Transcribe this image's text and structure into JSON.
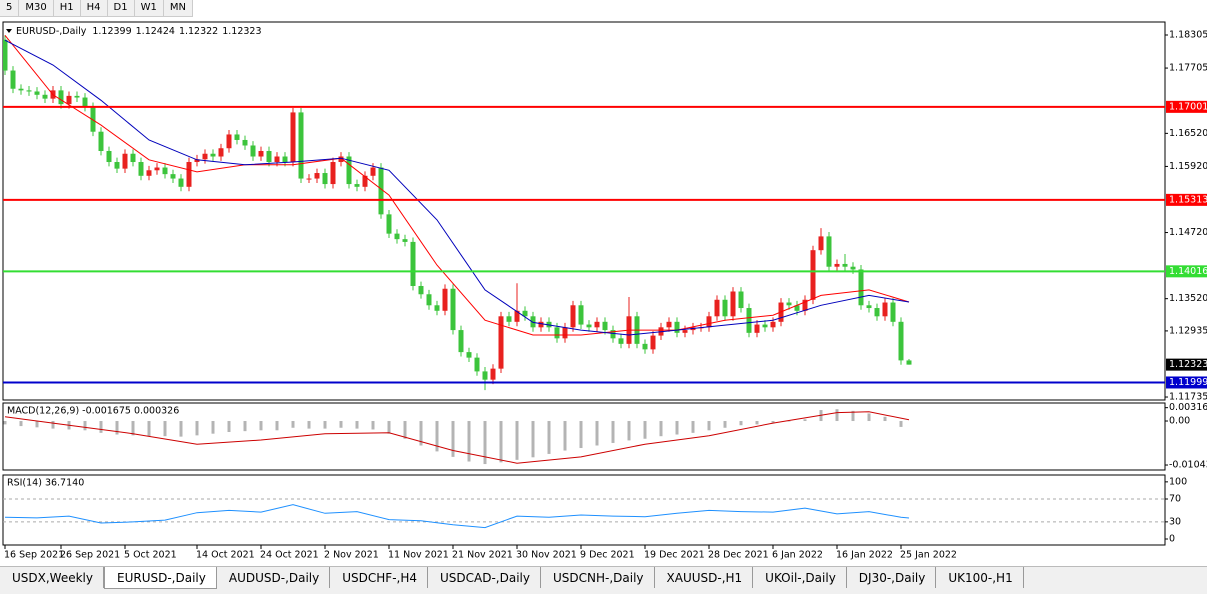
{
  "toolbar": [
    "5",
    "M30",
    "H1",
    "H4",
    "D1",
    "W1",
    "MN"
  ],
  "tabs": [
    "USDX,Weekly",
    "EURUSD-,Daily",
    "AUDUSD-,Daily",
    "USDCHF-,H4",
    "USDCAD-,Daily",
    "USDCNH-,Daily",
    "XAUUSD-,H1",
    "UKOil-,Daily",
    "DJ30-,Daily",
    "UK100-,H1"
  ],
  "active_tab": 1,
  "chart_data": [
    {
      "type": "candlestick",
      "symbol": "EURUSD-,Daily",
      "up_color": "#e8211f",
      "down_color": "#3cc43c",
      "xlim": [
        -0.25,
        145
      ],
      "xticks": [
        {
          "value": 0,
          "label": "16 Sep 2021"
        },
        {
          "value": 7,
          "label": "26 Sep 2021"
        },
        {
          "value": 15,
          "label": "5 Oct 2021"
        },
        {
          "value": 24,
          "label": "14 Oct 2021"
        },
        {
          "value": 32,
          "label": "24 Oct 2021"
        },
        {
          "value": 40,
          "label": "2 Nov 2021"
        },
        {
          "value": 48,
          "label": "11 Nov 2021"
        },
        {
          "value": 56,
          "label": "21 Nov 2021"
        },
        {
          "value": 64,
          "label": "30 Nov 2021"
        },
        {
          "value": 72,
          "label": "9 Dec 2021"
        },
        {
          "value": 80,
          "label": "19 Dec 2021"
        },
        {
          "value": 88,
          "label": "28 Dec 2021"
        },
        {
          "value": 96,
          "label": "6 Jan 2022"
        },
        {
          "value": 104,
          "label": "16 Jan 2022"
        },
        {
          "value": 112,
          "label": "25 Jan 2022"
        }
      ],
      "ylim": [
        1.11681,
        1.18541
      ],
      "yticks": [
        1.18305,
        1.17705,
        {
          "value": 1.1652,
          "label": "1.16520"
        },
        {
          "value": 1.1592,
          "label": "1.15920"
        },
        {
          "value": 1.1472,
          "label": "1.14720"
        },
        {
          "value": 1.1352,
          "label": "1.13520"
        },
        1.12935,
        1.11735
      ],
      "hlines": [
        {
          "value": 1.17001,
          "color": "#ff0000"
        },
        {
          "value": 1.15313,
          "color": "#ff0000"
        },
        {
          "value": 1.14016,
          "color": "#33dd33"
        },
        {
          "value": 1.11999,
          "color": "#0000cc"
        }
      ],
      "current_price_color": "#000000",
      "open": [
        1.1822,
        1.1766,
        1.1733,
        1.173,
        1.1728,
        1.1722,
        1.1715,
        1.173,
        1.1705,
        1.172,
        1.1717,
        1.17,
        1.1655,
        1.162,
        1.16,
        1.1588,
        1.1615,
        1.16,
        1.1575,
        1.1585,
        1.159,
        1.1578,
        1.157,
        1.1555,
        1.16,
        1.1605,
        1.1615,
        1.161,
        1.1625,
        1.165,
        1.164,
        1.163,
        1.161,
        1.162,
        1.16,
        1.161,
        1.16,
        1.169,
        1.157,
        1.157,
        1.158,
        1.156,
        1.16,
        1.161,
        1.156,
        1.1555,
        1.1575,
        1.159,
        1.1505,
        1.147,
        1.146,
        1.1455,
        1.1375,
        1.136,
        1.134,
        1.133,
        1.137,
        1.1295,
        1.1255,
        1.1245,
        1.122,
        1.1205,
        1.1225,
        1.132,
        1.131,
        1.133,
        1.132,
        1.13,
        1.131,
        1.13,
        1.128,
        1.13,
        1.134,
        1.1305,
        1.13,
        1.131,
        1.1295,
        1.128,
        1.127,
        1.132,
        1.127,
        1.126,
        1.1285,
        1.13,
        1.131,
        1.129,
        1.1295,
        1.13,
        1.13,
        1.132,
        1.135,
        1.132,
        1.1365,
        1.1335,
        1.129,
        1.1305,
        1.13,
        1.131,
        1.1345,
        1.134,
        1.133,
        1.135,
        1.144,
        1.1465,
        1.141,
        1.1415,
        1.141,
        1.1405,
        1.134,
        1.1335,
        1.132,
        1.1345,
        1.131,
        1.12399
      ],
      "high": [
        1.183,
        1.1774,
        1.1741,
        1.1738,
        1.1736,
        1.173,
        1.1738,
        1.1738,
        1.1728,
        1.1728,
        1.1725,
        1.1708,
        1.1663,
        1.1628,
        1.1608,
        1.1623,
        1.1623,
        1.1608,
        1.1593,
        1.1598,
        1.1598,
        1.1586,
        1.1578,
        1.1608,
        1.1613,
        1.1623,
        1.1623,
        1.1633,
        1.1658,
        1.1658,
        1.1648,
        1.1638,
        1.1628,
        1.1628,
        1.1618,
        1.1618,
        1.1698,
        1.1698,
        1.1578,
        1.1588,
        1.1588,
        1.1608,
        1.1618,
        1.1618,
        1.1568,
        1.1583,
        1.1598,
        1.1598,
        1.1513,
        1.1478,
        1.1468,
        1.1463,
        1.1383,
        1.1368,
        1.1348,
        1.1378,
        1.1378,
        1.1303,
        1.1263,
        1.1253,
        1.1228,
        1.1233,
        1.1328,
        1.1328,
        1.138,
        1.1338,
        1.1328,
        1.1318,
        1.1318,
        1.1308,
        1.1308,
        1.1348,
        1.1348,
        1.1313,
        1.1318,
        1.1318,
        1.1303,
        1.1288,
        1.1355,
        1.1328,
        1.1278,
        1.1293,
        1.1308,
        1.1318,
        1.1318,
        1.1303,
        1.1308,
        1.1308,
        1.1328,
        1.1358,
        1.1358,
        1.1373,
        1.1373,
        1.1343,
        1.1313,
        1.1313,
        1.1318,
        1.1353,
        1.1353,
        1.1348,
        1.1358,
        1.1448,
        1.148,
        1.1473,
        1.1423,
        1.1433,
        1.1418,
        1.1413,
        1.1348,
        1.1343,
        1.1353,
        1.1353,
        1.1318,
        1.12424
      ],
      "low": [
        1.1758,
        1.1725,
        1.1722,
        1.172,
        1.1714,
        1.1707,
        1.1707,
        1.1697,
        1.1697,
        1.1709,
        1.1692,
        1.1647,
        1.1612,
        1.1592,
        1.158,
        1.158,
        1.1592,
        1.1567,
        1.1567,
        1.1577,
        1.157,
        1.1562,
        1.1547,
        1.1547,
        1.1592,
        1.1597,
        1.1602,
        1.1602,
        1.1617,
        1.1632,
        1.1622,
        1.1602,
        1.1602,
        1.1592,
        1.1592,
        1.1592,
        1.1592,
        1.1562,
        1.1562,
        1.1562,
        1.1552,
        1.1552,
        1.1592,
        1.1552,
        1.1547,
        1.1547,
        1.1567,
        1.1497,
        1.1462,
        1.1452,
        1.1447,
        1.1367,
        1.1352,
        1.1332,
        1.1322,
        1.1322,
        1.1287,
        1.1247,
        1.1237,
        1.1212,
        1.1186,
        1.1197,
        1.1217,
        1.1302,
        1.1302,
        1.1312,
        1.1292,
        1.1292,
        1.1292,
        1.1272,
        1.1272,
        1.1292,
        1.1297,
        1.1292,
        1.1292,
        1.1287,
        1.1272,
        1.1262,
        1.1262,
        1.1262,
        1.1252,
        1.1252,
        1.1277,
        1.1292,
        1.1282,
        1.1282,
        1.1287,
        1.1292,
        1.1292,
        1.1312,
        1.1312,
        1.1312,
        1.1327,
        1.1282,
        1.1282,
        1.1292,
        1.1292,
        1.1302,
        1.1332,
        1.1322,
        1.1322,
        1.1342,
        1.1432,
        1.1402,
        1.1402,
        1.1402,
        1.1397,
        1.1332,
        1.1327,
        1.1312,
        1.1312,
        1.1302,
        1.1232,
        1.12322
      ],
      "close": [
        1.1766,
        1.1733,
        1.173,
        1.1728,
        1.1722,
        1.1715,
        1.173,
        1.1705,
        1.172,
        1.1717,
        1.17,
        1.1655,
        1.162,
        1.16,
        1.1588,
        1.1615,
        1.16,
        1.1575,
        1.1585,
        1.159,
        1.1578,
        1.157,
        1.1555,
        1.16,
        1.1605,
        1.1615,
        1.161,
        1.1625,
        1.165,
        1.164,
        1.163,
        1.161,
        1.162,
        1.16,
        1.161,
        1.16,
        1.169,
        1.157,
        1.157,
        1.158,
        1.156,
        1.16,
        1.161,
        1.156,
        1.1555,
        1.1575,
        1.159,
        1.1505,
        1.147,
        1.146,
        1.1455,
        1.1375,
        1.136,
        1.134,
        1.133,
        1.137,
        1.1295,
        1.1255,
        1.1245,
        1.122,
        1.1205,
        1.1225,
        1.132,
        1.131,
        1.133,
        1.132,
        1.13,
        1.131,
        1.13,
        1.128,
        1.13,
        1.134,
        1.1305,
        1.13,
        1.131,
        1.1295,
        1.128,
        1.127,
        1.132,
        1.127,
        1.126,
        1.1285,
        1.13,
        1.131,
        1.129,
        1.1295,
        1.13,
        1.13,
        1.132,
        1.135,
        1.132,
        1.1365,
        1.1335,
        1.129,
        1.1305,
        1.13,
        1.131,
        1.1345,
        1.134,
        1.133,
        1.135,
        1.144,
        1.1465,
        1.141,
        1.1415,
        1.141,
        1.1405,
        1.134,
        1.1335,
        1.132,
        1.1345,
        1.131,
        1.124,
        1.12323
      ],
      "series": [
        {
          "color": "#ff0000",
          "x": [
            0,
            6,
            12,
            18,
            24,
            30,
            36,
            42,
            48,
            54,
            60,
            66,
            72,
            78,
            84,
            90,
            96,
            102,
            108,
            113
          ],
          "values": [
            1.183,
            1.1722,
            1.1667,
            1.1604,
            1.1582,
            1.1595,
            1.1595,
            1.1607,
            1.154,
            1.1413,
            1.1313,
            1.1286,
            1.1286,
            1.1295,
            1.1295,
            1.1313,
            1.1322,
            1.1358,
            1.1368,
            1.1346
          ]
        },
        {
          "color": "#0000bb",
          "x": [
            0,
            6,
            12,
            18,
            24,
            30,
            36,
            42,
            48,
            54,
            60,
            66,
            72,
            78,
            84,
            90,
            96,
            102,
            108,
            113
          ],
          "values": [
            1.1821,
            1.1776,
            1.1712,
            1.164,
            1.1604,
            1.1595,
            1.16,
            1.1607,
            1.1585,
            1.1495,
            1.1368,
            1.1309,
            1.1295,
            1.1286,
            1.1295,
            1.1304,
            1.1313,
            1.134,
            1.1358,
            1.1346
          ]
        }
      ]
    },
    {
      "type": "bar",
      "title": "MACD(12,26,9) -0.001675 0.000326",
      "ylim": [
        -0.01161,
        0.00427
      ],
      "yticks": [
        0.003165,
        {
          "value": 0,
          "label": "0.00"
        },
        -0.010431
      ],
      "series": [
        {
          "type": "bar",
          "color": "#b4b4b4",
          "x": [
            0,
            2,
            4,
            6,
            8,
            10,
            12,
            14,
            16,
            18,
            20,
            22,
            24,
            26,
            28,
            30,
            32,
            34,
            36,
            38,
            40,
            42,
            44,
            46,
            48,
            50,
            52,
            54,
            56,
            58,
            60,
            62,
            64,
            66,
            68,
            70,
            72,
            74,
            76,
            78,
            80,
            82,
            84,
            86,
            88,
            90,
            92,
            94,
            96,
            98,
            100,
            102,
            104,
            106,
            108,
            110,
            112
          ],
          "values": [
            -0.0008,
            -0.0012,
            -0.0015,
            -0.0018,
            -0.002,
            -0.0022,
            -0.0028,
            -0.0032,
            -0.0034,
            -0.0036,
            -0.0036,
            -0.0037,
            -0.0034,
            -0.003,
            -0.0026,
            -0.0024,
            -0.0022,
            -0.0022,
            -0.0016,
            -0.0018,
            -0.0018,
            -0.0016,
            -0.0018,
            -0.002,
            -0.003,
            -0.0042,
            -0.0058,
            -0.0072,
            -0.0085,
            -0.0096,
            -0.0102,
            -0.0098,
            -0.0092,
            -0.0086,
            -0.0078,
            -0.007,
            -0.0064,
            -0.0058,
            -0.0052,
            -0.0046,
            -0.0042,
            -0.0036,
            -0.0032,
            -0.0028,
            -0.0022,
            -0.0016,
            -0.001,
            -0.0008,
            -0.0004,
            0,
            0.0004,
            0.0026,
            0.0028,
            0.0024,
            0.0018,
            0.001,
            -0.0014
          ]
        },
        {
          "type": "line",
          "color": "#cc0000",
          "x": [
            0,
            8,
            16,
            24,
            32,
            40,
            48,
            56,
            64,
            72,
            80,
            88,
            96,
            104,
            108,
            113
          ],
          "values": [
            0.001,
            -0.001,
            -0.003,
            -0.0055,
            -0.0045,
            -0.003,
            -0.0028,
            -0.007,
            -0.01,
            -0.0085,
            -0.0055,
            -0.0035,
            -0.0005,
            0.002,
            0.0022,
            0.0003
          ]
        }
      ]
    },
    {
      "type": "line",
      "title": "RSI(14) 36.7140",
      "ylim": [
        -10.5,
        112
      ],
      "yticks": [
        100,
        70,
        30,
        0
      ],
      "levels": [
        70,
        30
      ],
      "series": [
        {
          "color": "#1e90ff",
          "x": [
            0,
            4,
            8,
            12,
            16,
            20,
            24,
            28,
            32,
            36,
            40,
            44,
            48,
            52,
            56,
            60,
            64,
            68,
            72,
            76,
            80,
            84,
            88,
            92,
            96,
            100,
            104,
            108,
            112,
            113
          ],
          "values": [
            38,
            37,
            40,
            28,
            30,
            33,
            46,
            50,
            47,
            60,
            45,
            48,
            34,
            32,
            25,
            20,
            40,
            38,
            42,
            40,
            39,
            45,
            50,
            48,
            47,
            54,
            44,
            48,
            38,
            36.714
          ]
        }
      ]
    }
  ]
}
